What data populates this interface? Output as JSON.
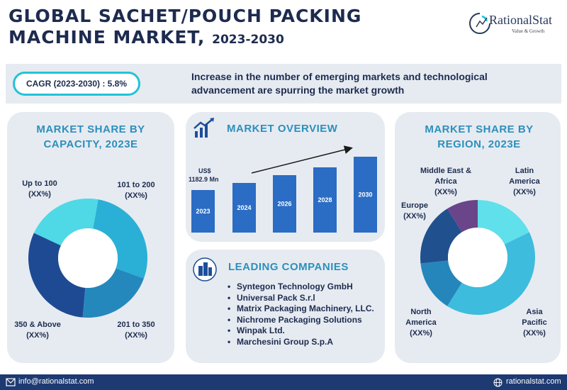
{
  "header": {
    "title_line1": "GLOBAL SACHET/POUCH PACKING",
    "title_line2": "MACHINE MARKET,",
    "title_years": "2023-2030"
  },
  "logo": {
    "name": "RationalStat",
    "tagline": "Value & Growth",
    "icon": "rationalstat-logo-icon"
  },
  "banner": {
    "cagr": "CAGR (2023-2030) : 5.8%",
    "text": "Increase in the number of emerging markets and technological advancement are spurring the market growth"
  },
  "capacity": {
    "title_l1": "MARKET SHARE BY",
    "title_l2": "CAPACITY, 2023E",
    "segments": [
      {
        "name": "Up to 100",
        "value": "(XX%)",
        "color": "#1e4a94"
      },
      {
        "name": "101 to 200",
        "value": "(XX%)",
        "color": "#4fd8e6"
      },
      {
        "name": "201 to 350",
        "value": "(XX%)",
        "color": "#2ab0d6"
      },
      {
        "name": "350 & Above",
        "value": "(XX%)",
        "color": "#2588bd"
      }
    ]
  },
  "overview": {
    "title": "MARKET OVERVIEW",
    "icon": "growth-chart-icon",
    "value_label_l1": "US$",
    "value_label_l2": "1182.9 Mn",
    "chart_data": {
      "type": "bar",
      "categories": [
        "2023",
        "2024",
        "2026",
        "2028",
        "2030"
      ],
      "values": [
        1182.9,
        null,
        null,
        null,
        null
      ],
      "title": "MARKET OVERVIEW",
      "unit": "US$ Mn",
      "trend": "increasing",
      "color": "#2b6cc4"
    }
  },
  "companies": {
    "title": "LEADING COMPANIES",
    "icon": "buildings-icon",
    "items": [
      "Syntegon Technology GmbH",
      "Universal Pack S.r.l",
      "Matrix Packaging Machinery, LLC.",
      "Nichrome Packaging Solutions",
      "Winpak Ltd.",
      "Marchesini Group S.p.A"
    ]
  },
  "region": {
    "title_l1": "MARKET SHARE BY",
    "title_l2": "REGION, 2023E",
    "segments": [
      {
        "name": "Latin America",
        "l1": "Latin",
        "l2": "America",
        "value": "(XX%)",
        "color": "#5fe0ea"
      },
      {
        "name": "Asia Pacific",
        "l1": "Asia",
        "l2": "Pacific",
        "value": "(XX%)",
        "color": "#3dbcdd"
      },
      {
        "name": "North America",
        "l1": "North",
        "l2": "America",
        "value": "(XX%)",
        "color": "#2586bb"
      },
      {
        "name": "Europe",
        "l1": "Europe",
        "l2": "",
        "value": "(XX%)",
        "color": "#21508f"
      },
      {
        "name": "Middle East & Africa",
        "l1": "Middle East &",
        "l2": "Africa",
        "value": "(XX%)",
        "color": "#6a4589"
      }
    ]
  },
  "footer": {
    "email": "info@rationalstat.com",
    "email_icon": "mail-icon",
    "website": "rationalstat.com",
    "website_icon": "globe-icon"
  }
}
